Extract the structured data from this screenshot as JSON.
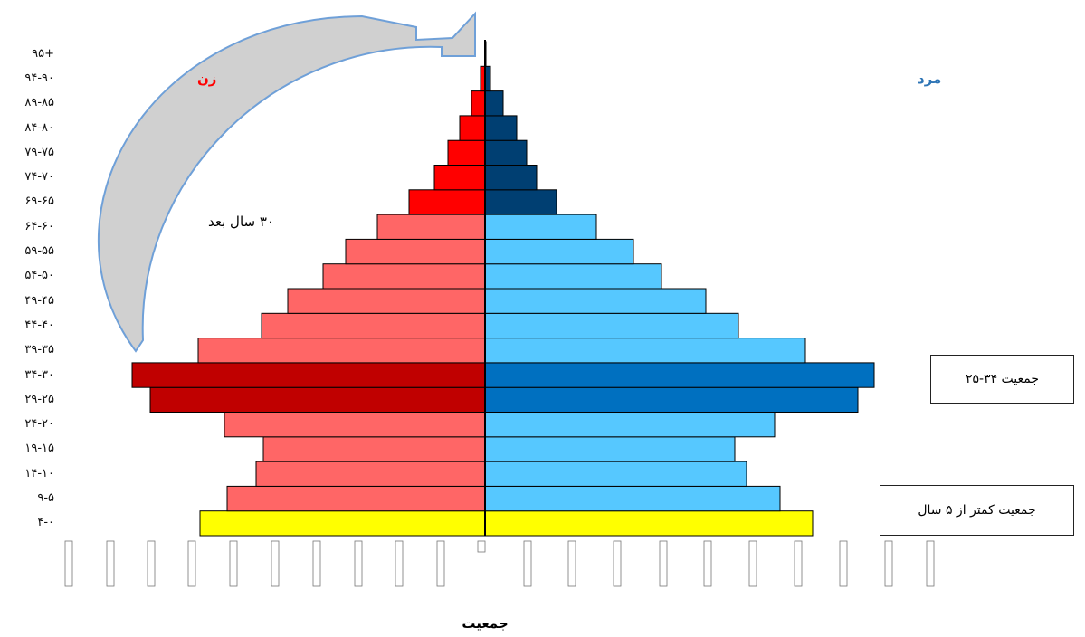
{
  "chart_data": {
    "type": "bar",
    "orientation": "horizontal-population-pyramid",
    "categories": [
      "۴-۰",
      "۹-۵",
      "۱۴-۱۰",
      "۱۹-۱۵",
      "۲۴-۲۰",
      "۲۹-۲۵",
      "۳۴-۳۰",
      "۳۹-۳۵",
      "۴۴-۴۰",
      "۴۹-۴۵",
      "۵۴-۵۰",
      "۵۹-۵۵",
      "۶۴-۶۰",
      "۶۹-۶۵",
      "۷۴-۷۰",
      "۷۹-۷۵",
      "۸۴-۸۰",
      "۸۹-۸۵",
      "۹۴-۹۰",
      "۹۵+"
    ],
    "series": [
      {
        "name": "زن",
        "side": "left",
        "values": [
          315,
          285,
          253,
          245,
          288,
          370,
          390,
          317,
          247,
          218,
          179,
          154,
          119,
          84,
          56,
          41,
          28,
          15,
          5,
          0
        ]
      },
      {
        "name": "مرد",
        "side": "right",
        "values": [
          362,
          326,
          289,
          276,
          320,
          412,
          430,
          354,
          280,
          244,
          195,
          164,
          123,
          79,
          57,
          46,
          35,
          20,
          6,
          1
        ]
      }
    ],
    "highlight_groups": {
      "under5": [
        "۴-۰"
      ],
      "25_34": [
        "۲۹-۲۵",
        "۳۴-۳۰"
      ],
      "elderly": [
        "۶۹-۶۵",
        "۷۴-۷۰",
        "۷۹-۷۵",
        "۸۴-۸۰",
        "۸۹-۸۵",
        "۹۴-۹۰",
        "۹۵+"
      ]
    },
    "xlabel": "جمعیت",
    "ylabel": "",
    "xlim": [
      -400,
      440
    ],
    "colors": {
      "female": "#ff6666",
      "female_highlight": "#c00000",
      "female_elderly": "#ff0000",
      "male": "#56c8ff",
      "male_highlight": "#0070c0",
      "male_elderly": "#003f72",
      "under5": "#ffff00",
      "arrow_fill": "#d0d0d0",
      "arrow_stroke": "#6fa0d8"
    }
  },
  "legend": {
    "female": "زن",
    "male": "مرد",
    "female_color": "#ff0000",
    "male_color": "#2e75b6"
  },
  "annotations": {
    "thirty_years_later": "۳۰ سال بعد",
    "box_25_34": "جمعیت ۳۴-۲۵",
    "box_under5": "جمعیت کمتر از ۵ سال"
  }
}
